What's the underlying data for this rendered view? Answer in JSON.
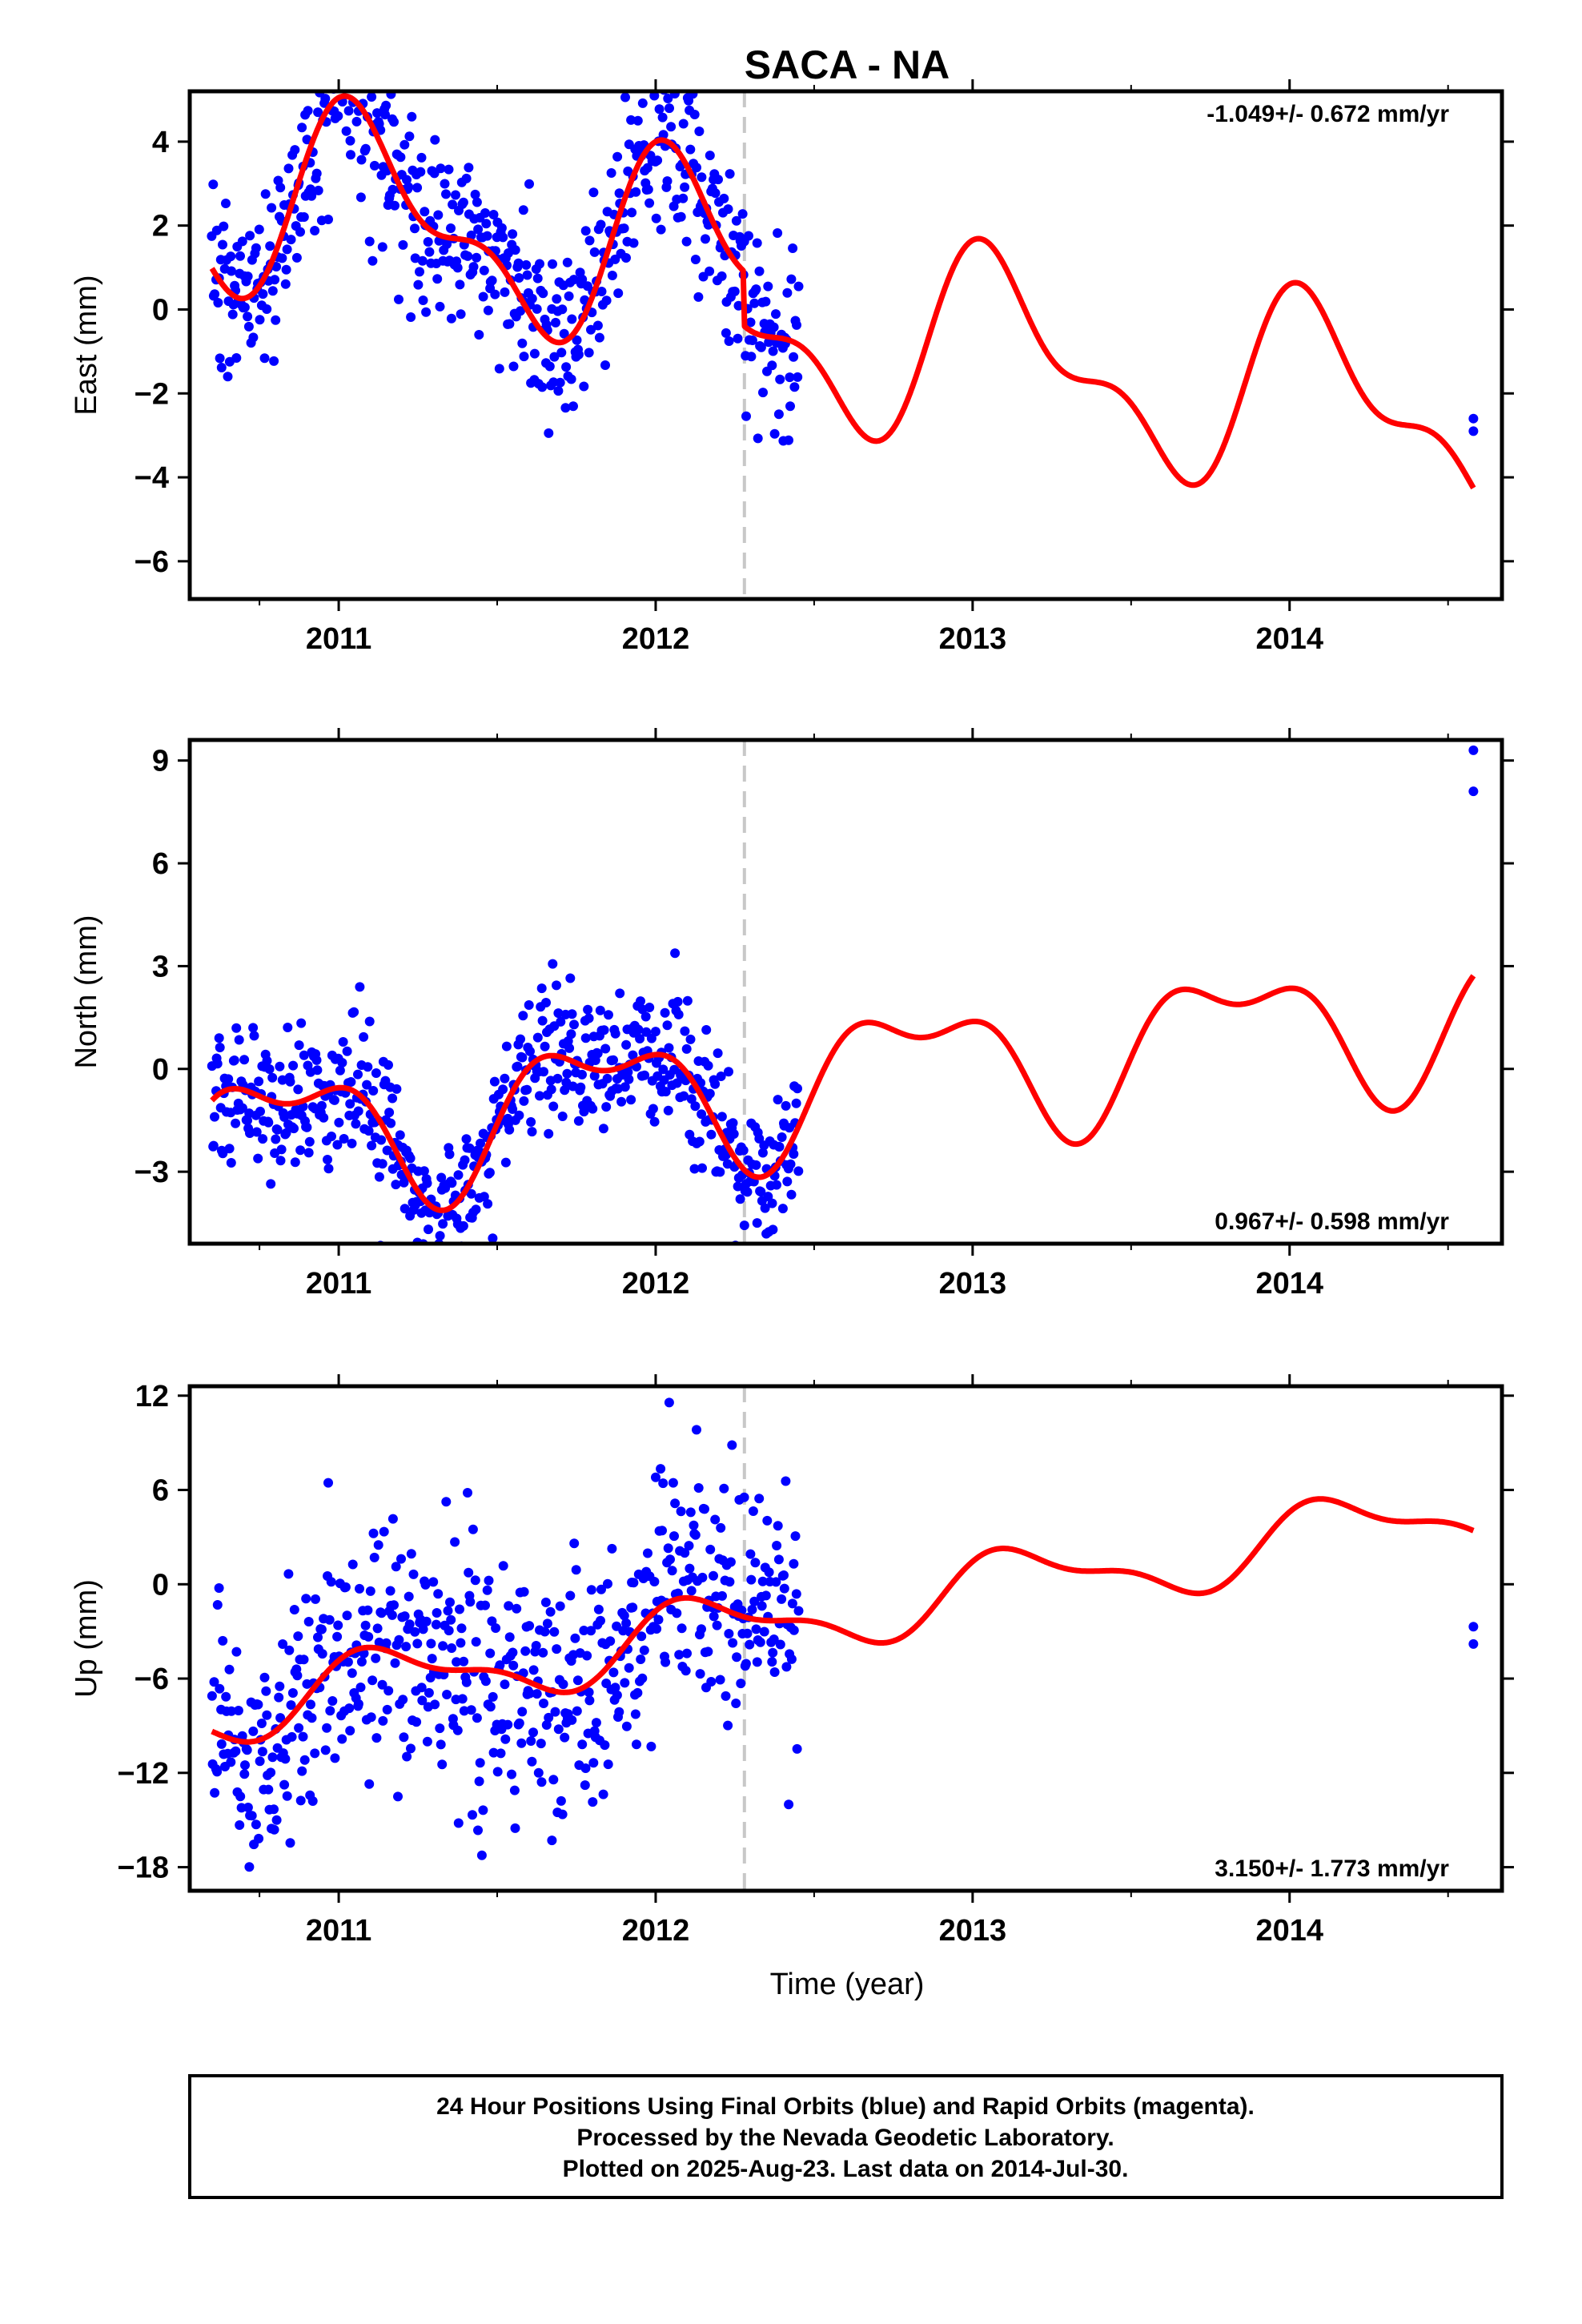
{
  "title": "SACA - NA",
  "xlabel": "Time (year)",
  "colors": {
    "points": "#0000ff",
    "model": "#ff0000",
    "break_line": "#c8c8c8",
    "frame": "#000000"
  },
  "footer": {
    "line1": "24 Hour Positions Using Final Orbits (blue) and Rapid Orbits (magenta).",
    "line2": "Processed by the Nevada Geodetic Laboratory.",
    "line3": "Plotted on 2025-Aug-23. Last data on 2014-Jul-30."
  },
  "chart_data": [
    {
      "type": "scatter",
      "component": "east",
      "ylabel": "East (mm)",
      "rate": "-1.049+/- 0.672 mm/yr",
      "rate_position": "top-right",
      "xlim": [
        2010.53,
        2014.67
      ],
      "ylim": [
        -6.9,
        5.2
      ],
      "xticks": [
        "2011",
        "2012",
        "2013",
        "2014"
      ],
      "yticks": [
        "4",
        "2",
        "0",
        "−2",
        "−4",
        "−6"
      ],
      "ytick_values": [
        4,
        2,
        0,
        -2,
        -4,
        -6
      ],
      "break_epoch": 2012.28,
      "data_span": [
        2010.6,
        2012.45
      ],
      "model": {
        "rate": -1.049,
        "offset": 0.8,
        "annual_amp": 2.0,
        "annual_phase": 1.0,
        "semi_amp": 1.0,
        "semi_phase": 1.7,
        "step": -1.3
      },
      "scatter_sd": 1.1,
      "late_points": [
        {
          "x": 2014.58,
          "y": -2.6
        },
        {
          "x": 2014.58,
          "y": -2.9
        }
      ]
    },
    {
      "type": "scatter",
      "component": "north",
      "ylabel": "North (mm)",
      "rate": "0.967+/- 0.598 mm/yr",
      "rate_position": "bottom-right",
      "xlim": [
        2010.53,
        2014.67
      ],
      "ylim": [
        -5.1,
        9.6
      ],
      "xticks": [
        "2011",
        "2012",
        "2013",
        "2014"
      ],
      "yticks": [
        "9",
        "6",
        "3",
        "0",
        "−3"
      ],
      "ytick_values": [
        9,
        6,
        3,
        0,
        -3
      ],
      "break_epoch": 2012.28,
      "data_span": [
        2010.6,
        2012.45
      ],
      "model": {
        "rate": 0.967,
        "offset": -0.3,
        "annual_amp": 1.8,
        "annual_phase": 2.7,
        "semi_amp": 0.9,
        "semi_phase": 0.5,
        "step": 0.0
      },
      "scatter_sd": 1.0,
      "late_points": [
        {
          "x": 2014.58,
          "y": 9.3
        },
        {
          "x": 2014.58,
          "y": 8.1
        }
      ]
    },
    {
      "type": "scatter",
      "component": "up",
      "ylabel": "Up (mm)",
      "rate": "3.150+/- 1.773 mm/yr",
      "rate_position": "bottom-right",
      "xlim": [
        2010.53,
        2014.67
      ],
      "ylim": [
        -19.5,
        12.6
      ],
      "xticks": [
        "2011",
        "2012",
        "2013",
        "2014"
      ],
      "yticks": [
        "12",
        "6",
        "0",
        "−6",
        "−12",
        "−18"
      ],
      "ytick_values": [
        12,
        6,
        0,
        -6,
        -12,
        -18
      ],
      "break_epoch": 2012.28,
      "data_span": [
        2010.6,
        2012.45
      ],
      "model": {
        "rate": 3.15,
        "offset": -2.0,
        "annual_amp": 2.0,
        "annual_phase": 0.6,
        "semi_amp": 0.8,
        "semi_phase": 1.2,
        "step": 0.0
      },
      "scatter_sd": 4.0,
      "late_points": [
        {
          "x": 2014.58,
          "y": -2.7
        },
        {
          "x": 2014.58,
          "y": -3.8
        }
      ]
    }
  ]
}
